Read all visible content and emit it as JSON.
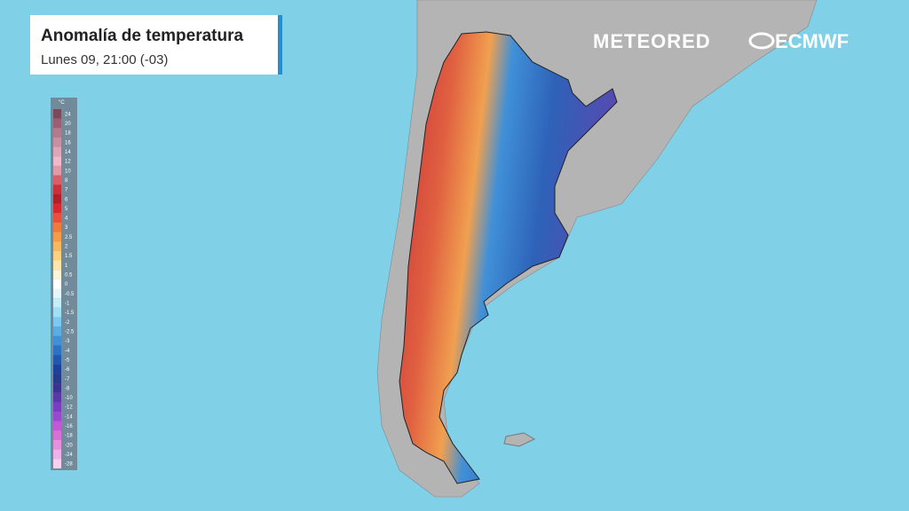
{
  "header": {
    "title": "Anomalía de temperatura",
    "subtitle": "Lunes 09, 21:00 (-03)"
  },
  "logos": {
    "brand": "METEORED",
    "model": "ECMWF"
  },
  "legend": {
    "unit": "°C",
    "items": [
      {
        "value": 24,
        "color": "#7a4a5a"
      },
      {
        "value": 20,
        "color": "#9c5f72"
      },
      {
        "value": 18,
        "color": "#b57a8c"
      },
      {
        "value": 16,
        "color": "#c98fa2"
      },
      {
        "value": 14,
        "color": "#e0a6b8"
      },
      {
        "value": 12,
        "color": "#f0b8c8"
      },
      {
        "value": 10,
        "color": "#e39aa8"
      },
      {
        "value": 8,
        "color": "#d85f6a"
      },
      {
        "value": 7,
        "color": "#c8303a"
      },
      {
        "value": 6,
        "color": "#b01e28"
      },
      {
        "value": 5,
        "color": "#d8282e"
      },
      {
        "value": 4,
        "color": "#e8503a"
      },
      {
        "value": 3,
        "color": "#f07a3a"
      },
      {
        "value": 2.5,
        "color": "#f59a48"
      },
      {
        "value": 2,
        "color": "#f8b860"
      },
      {
        "value": 1.5,
        "color": "#fbd080"
      },
      {
        "value": 1,
        "color": "#fde6a8"
      },
      {
        "value": 0.5,
        "color": "#fff4d8"
      },
      {
        "value": 0,
        "color": "#ffffff"
      },
      {
        "value": -0.5,
        "color": "#e4f6fb"
      },
      {
        "value": -1,
        "color": "#c4eef8"
      },
      {
        "value": -1.5,
        "color": "#a0e0f4"
      },
      {
        "value": -2,
        "color": "#7cc8ee"
      },
      {
        "value": -2.5,
        "color": "#5aaee6"
      },
      {
        "value": -3,
        "color": "#4090d8"
      },
      {
        "value": -4,
        "color": "#2e72c4"
      },
      {
        "value": -5,
        "color": "#2058b0"
      },
      {
        "value": -6,
        "color": "#1a449a"
      },
      {
        "value": -7,
        "color": "#283a8a"
      },
      {
        "value": -8,
        "color": "#3a3490"
      },
      {
        "value": -10,
        "color": "#5a38a8"
      },
      {
        "value": -12,
        "color": "#7a3cc0"
      },
      {
        "value": -14,
        "color": "#9a48d0"
      },
      {
        "value": -16,
        "color": "#c058d8"
      },
      {
        "value": -18,
        "color": "#d870d8"
      },
      {
        "value": -20,
        "color": "#e890e0"
      },
      {
        "value": -24,
        "color": "#f0b0e8"
      },
      {
        "value": -28,
        "color": "#f8d0f0"
      }
    ]
  }
}
